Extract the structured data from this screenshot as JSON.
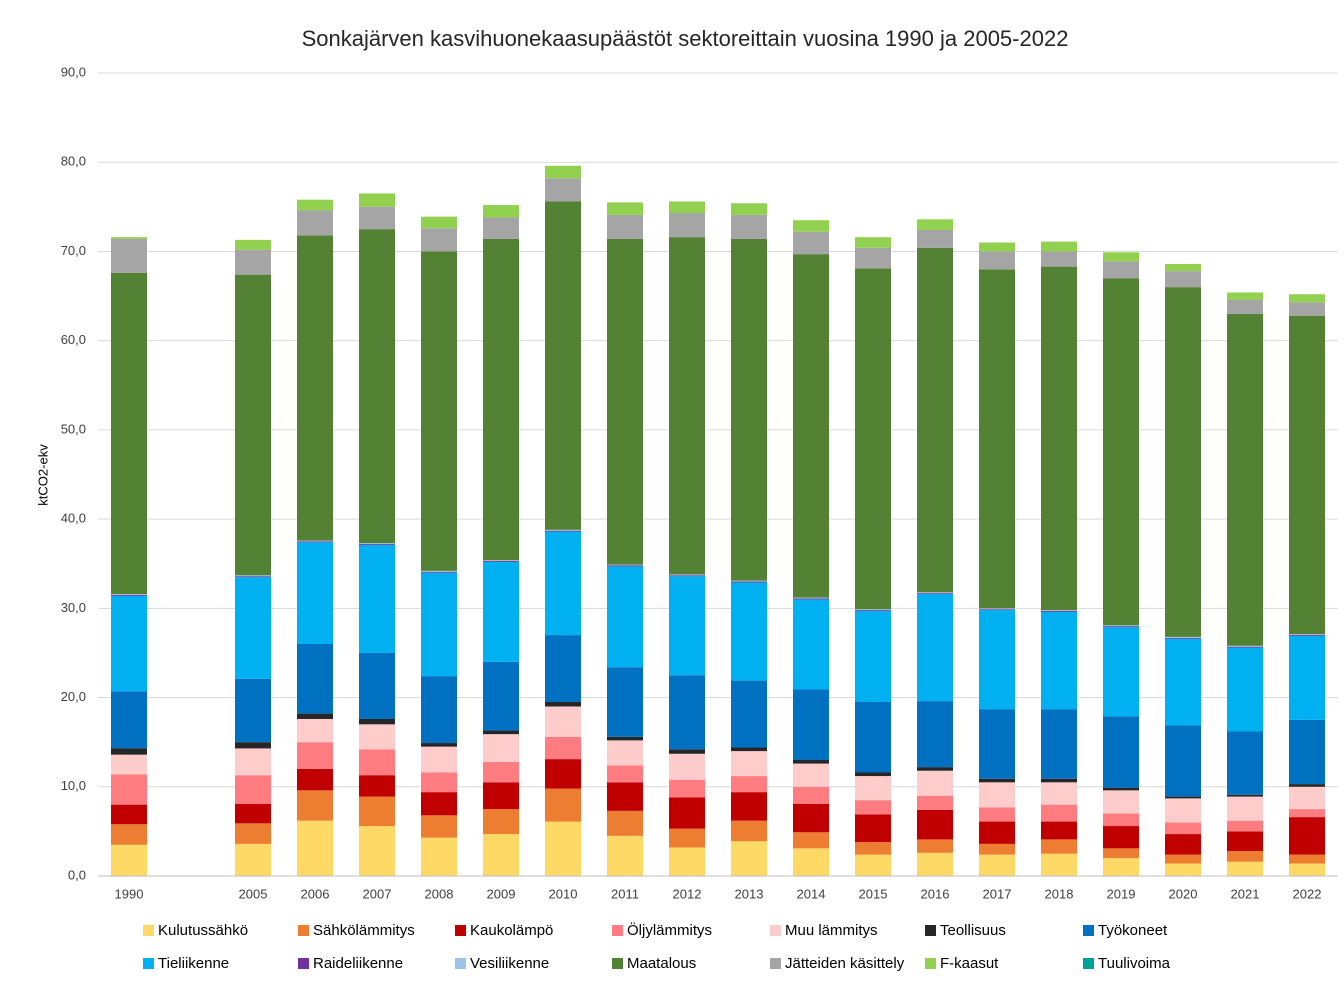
{
  "chart_data": {
    "type": "bar",
    "stacked": true,
    "title": "Sonkajärven kasvihuonekaasupäästöt  sektoreittain vuosina 1990 ja 2005-2022",
    "y_label": "ktCO2-ekv",
    "categories": [
      "1990",
      null,
      "2005",
      "2006",
      "2007",
      "2008",
      "2009",
      "2010",
      "2011",
      "2012",
      "2013",
      "2014",
      "2015",
      "2016",
      "2017",
      "2018",
      "2019",
      "2020",
      "2021",
      "2022"
    ],
    "ylim": [
      0,
      90
    ],
    "yticks": [
      {
        "value": 0,
        "label": "0,0"
      },
      {
        "value": 10,
        "label": "10,0"
      },
      {
        "value": 20,
        "label": "20,0"
      },
      {
        "value": 30,
        "label": "30,0"
      },
      {
        "value": 40,
        "label": "40,0"
      },
      {
        "value": 50,
        "label": "50,0"
      },
      {
        "value": 60,
        "label": "60,0"
      },
      {
        "value": 70,
        "label": "70,0"
      },
      {
        "value": 80,
        "label": "80,0"
      },
      {
        "value": 90,
        "label": "90,0"
      }
    ],
    "grid": true,
    "legend": "bottom",
    "series": [
      {
        "name": "Kulutussähkö",
        "color": "#ffd966",
        "values": [
          3.5,
          null,
          3.6,
          6.2,
          5.6,
          4.3,
          4.7,
          6.1,
          4.5,
          3.2,
          3.9,
          3.1,
          2.4,
          2.6,
          2.4,
          2.5,
          2.0,
          1.4,
          1.6,
          1.4
        ]
      },
      {
        "name": "Sähkölämmitys",
        "color": "#ed7d31",
        "values": [
          2.3,
          null,
          2.3,
          3.4,
          3.3,
          2.5,
          2.8,
          3.7,
          2.8,
          2.1,
          2.3,
          1.8,
          1.4,
          1.5,
          1.2,
          1.6,
          1.1,
          1.0,
          1.2,
          1.0
        ]
      },
      {
        "name": "Kaukolämpö",
        "color": "#c00000",
        "values": [
          2.2,
          null,
          2.2,
          2.4,
          2.4,
          2.6,
          3.0,
          3.3,
          3.2,
          3.5,
          3.2,
          3.2,
          3.1,
          3.3,
          2.5,
          2.0,
          2.5,
          2.3,
          2.2,
          4.2
        ]
      },
      {
        "name": "Öljylämmitys",
        "color": "#ff7c80",
        "values": [
          3.4,
          null,
          3.2,
          3.0,
          2.9,
          2.2,
          2.3,
          2.5,
          1.9,
          2.0,
          1.8,
          1.9,
          1.6,
          1.6,
          1.6,
          1.9,
          1.4,
          1.3,
          1.2,
          0.9
        ]
      },
      {
        "name": "Muu lämmitys",
        "color": "#ffcccc",
        "values": [
          2.2,
          null,
          3.0,
          2.6,
          2.8,
          2.9,
          3.1,
          3.4,
          2.8,
          2.9,
          2.8,
          2.6,
          2.7,
          2.8,
          2.8,
          2.5,
          2.6,
          2.7,
          2.7,
          2.5
        ]
      },
      {
        "name": "Teollisuus",
        "color": "#262626",
        "values": [
          0.7,
          null,
          0.7,
          0.6,
          0.6,
          0.4,
          0.4,
          0.5,
          0.4,
          0.5,
          0.4,
          0.4,
          0.4,
          0.4,
          0.4,
          0.4,
          0.3,
          0.2,
          0.2,
          0.3
        ]
      },
      {
        "name": "Työkoneet",
        "color": "#0070c0",
        "values": [
          6.4,
          null,
          7.1,
          7.8,
          7.4,
          7.5,
          7.7,
          7.5,
          7.8,
          8.3,
          7.5,
          7.9,
          7.9,
          7.4,
          7.8,
          7.8,
          8.0,
          8.0,
          7.1,
          7.2
        ]
      },
      {
        "name": "Tieliikenne",
        "color": "#00b0f0",
        "values": [
          10.7,
          null,
          11.4,
          11.4,
          12.1,
          11.6,
          11.2,
          11.6,
          11.3,
          11.1,
          11.0,
          10.1,
          10.2,
          12.0,
          11.1,
          10.9,
          10.0,
          9.7,
          9.4,
          9.4
        ]
      },
      {
        "name": "Raideliikenne",
        "color": "#7030a0",
        "values": [
          0.1,
          null,
          0.1,
          0.1,
          0.1,
          0.1,
          0.1,
          0.1,
          0.1,
          0.1,
          0.1,
          0.1,
          0.1,
          0.1,
          0.1,
          0.1,
          0.1,
          0.1,
          0.1,
          0.1
        ]
      },
      {
        "name": "Vesiliikenne",
        "color": "#9dc3e6",
        "values": [
          0.1,
          null,
          0.1,
          0.1,
          0.1,
          0.1,
          0.1,
          0.1,
          0.1,
          0.1,
          0.1,
          0.1,
          0.1,
          0.1,
          0.1,
          0.1,
          0.1,
          0.1,
          0.1,
          0.1
        ]
      },
      {
        "name": "Maatalous",
        "color": "#548235",
        "values": [
          36.0,
          null,
          33.7,
          34.2,
          35.2,
          35.8,
          36.0,
          36.8,
          36.5,
          37.8,
          38.3,
          38.5,
          38.2,
          38.6,
          38.0,
          38.5,
          38.9,
          39.2,
          37.2,
          35.7
        ]
      },
      {
        "name": "Jätteiden käsittely",
        "color": "#a5a5a5",
        "values": [
          3.8,
          null,
          2.8,
          2.8,
          2.5,
          2.6,
          2.4,
          2.6,
          2.7,
          2.7,
          2.7,
          2.5,
          2.3,
          2.0,
          2.0,
          1.7,
          1.9,
          1.8,
          1.6,
          1.5
        ]
      },
      {
        "name": "F-kaasut",
        "color": "#92d050",
        "values": [
          0.2,
          null,
          1.1,
          1.2,
          1.5,
          1.3,
          1.4,
          1.4,
          1.4,
          1.3,
          1.3,
          1.3,
          1.2,
          1.2,
          1.0,
          1.1,
          1.0,
          0.8,
          0.8,
          0.9
        ]
      },
      {
        "name": "Tuulivoima",
        "color": "#00a09a",
        "values": [
          0,
          null,
          0,
          0,
          0,
          0,
          0,
          0,
          0,
          0,
          0,
          0,
          0,
          0,
          0,
          0,
          0,
          0,
          0,
          0
        ]
      }
    ]
  }
}
